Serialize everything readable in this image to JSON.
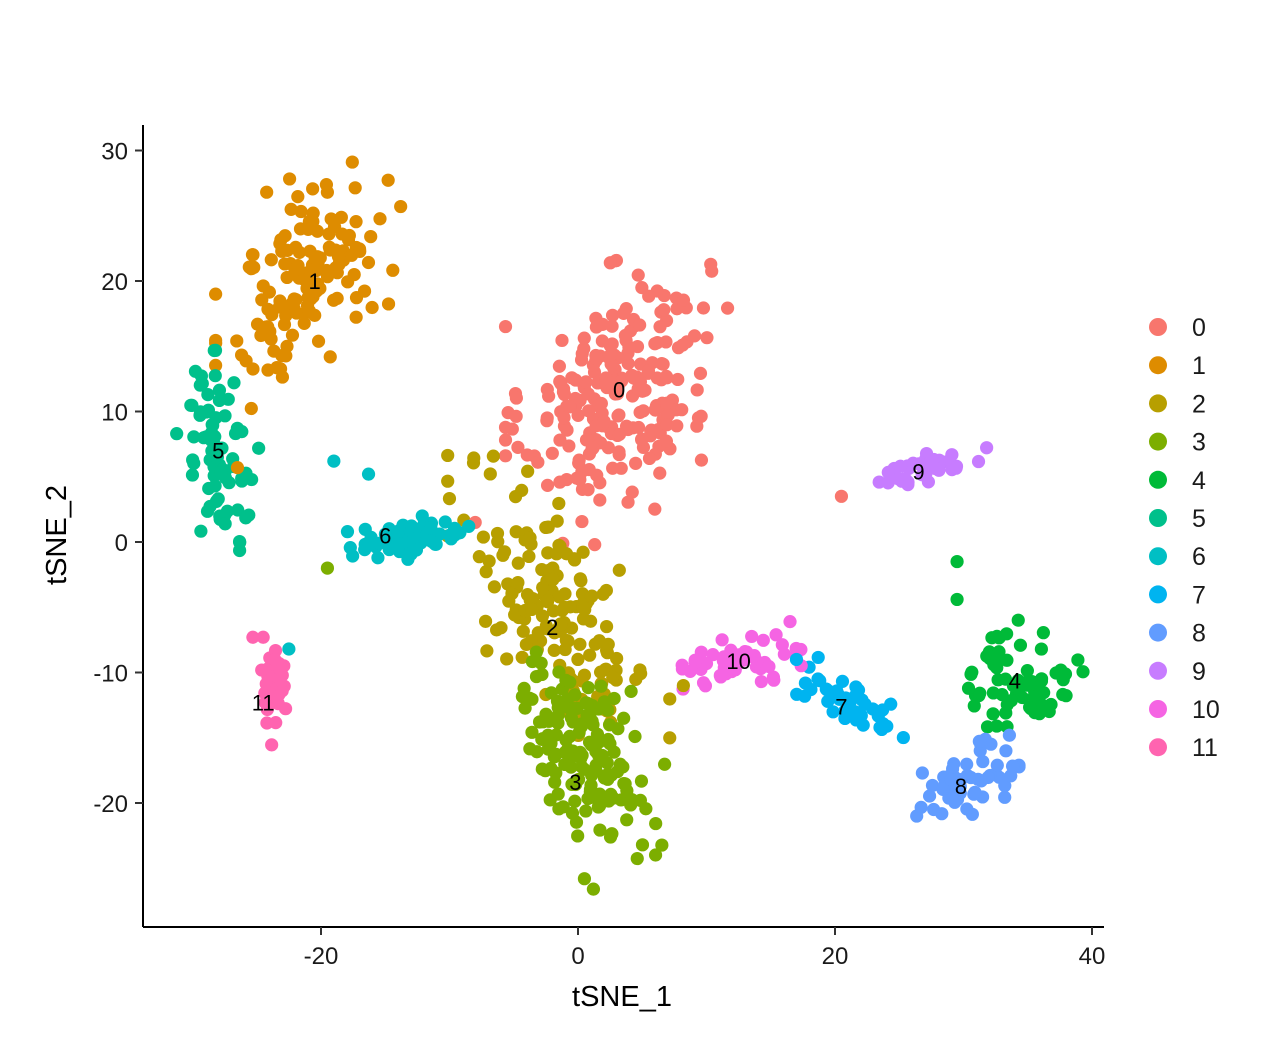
{
  "chart_data": {
    "type": "scatter",
    "title": "",
    "xlabel": "tSNE_1",
    "ylabel": "tSNE_2",
    "xlim": [
      -34,
      41
    ],
    "ylim": [
      -29.5,
      32
    ],
    "x_ticks": [
      -20,
      0,
      20,
      40
    ],
    "y_ticks": [
      30,
      20,
      10,
      0,
      -10,
      -20
    ],
    "x_tick_labels": [
      "-20",
      "0",
      "20",
      "40"
    ],
    "y_tick_labels": [
      "30",
      "20",
      "10",
      "0",
      "-10",
      "-20"
    ],
    "grid": false,
    "legend_position": "right",
    "legend": [
      {
        "label": "0",
        "color": "#F8766D"
      },
      {
        "label": "1",
        "color": "#DE8C00"
      },
      {
        "label": "2",
        "color": "#B79F00"
      },
      {
        "label": "3",
        "color": "#7CAE00"
      },
      {
        "label": "4",
        "color": "#00BA38"
      },
      {
        "label": "5",
        "color": "#00C08B"
      },
      {
        "label": "6",
        "color": "#00BFC4"
      },
      {
        "label": "7",
        "color": "#00B4F0"
      },
      {
        "label": "8",
        "color": "#619CFF"
      },
      {
        "label": "9",
        "color": "#C77CFF"
      },
      {
        "label": "10",
        "color": "#F564E3"
      },
      {
        "label": "11",
        "color": "#FF64B0"
      }
    ],
    "cluster_labels": [
      {
        "text": "0",
        "x": 3.2,
        "y": 11.7
      },
      {
        "text": "1",
        "x": -20.5,
        "y": 20.0
      },
      {
        "text": "2",
        "x": -2.0,
        "y": -6.5
      },
      {
        "text": "3",
        "x": -0.2,
        "y": -18.4
      },
      {
        "text": "4",
        "x": 34.0,
        "y": -10.6
      },
      {
        "text": "5",
        "x": -28.0,
        "y": 7.0
      },
      {
        "text": "6",
        "x": -15.0,
        "y": 0.5
      },
      {
        "text": "7",
        "x": 20.5,
        "y": -12.6
      },
      {
        "text": "8",
        "x": 29.8,
        "y": -18.7
      },
      {
        "text": "9",
        "x": 26.5,
        "y": 5.4
      },
      {
        "text": "10",
        "x": 12.5,
        "y": -9.1
      },
      {
        "text": "11",
        "x": -24.5,
        "y": -12.3
      }
    ],
    "clusters": [
      {
        "name": "0",
        "color": "#F8766D",
        "n": 240,
        "cx": 3.0,
        "cy": 11.5,
        "sx": 3.6,
        "sy": 4.4,
        "r": 0.3
      },
      {
        "name": "1",
        "color": "#DE8C00",
        "n": 150,
        "cx": -21.0,
        "cy": 20.5,
        "sx": 3.0,
        "sy": 3.8,
        "r": 0.45
      },
      {
        "name": "2",
        "color": "#B79F00",
        "n": 160,
        "cx": -1.5,
        "cy": -5.5,
        "sx": 3.6,
        "sy": 4.6,
        "r": -0.55
      },
      {
        "name": "3",
        "color": "#7CAE00",
        "n": 150,
        "cx": 0.5,
        "cy": -16.0,
        "sx": 2.6,
        "sy": 3.3,
        "r": -0.5
      },
      {
        "name": "4",
        "color": "#00BA38",
        "n": 70,
        "cx": 34.5,
        "cy": -10.5,
        "sx": 2.0,
        "sy": 2.0,
        "r": 0.0
      },
      {
        "name": "5",
        "color": "#00C08B",
        "n": 75,
        "cx": -28.0,
        "cy": 7.0,
        "sx": 1.4,
        "sy": 3.4,
        "r": -0.4
      },
      {
        "name": "6",
        "color": "#00BFC4",
        "n": 70,
        "cx": -13.0,
        "cy": 0.3,
        "sx": 2.4,
        "sy": 0.7,
        "r": 0.2
      },
      {
        "name": "7",
        "color": "#00B4F0",
        "n": 45,
        "cx": 21.0,
        "cy": -12.5,
        "sx": 1.8,
        "sy": 1.4,
        "r": -0.7
      },
      {
        "name": "8",
        "color": "#619CFF",
        "n": 60,
        "cx": 30.0,
        "cy": -18.5,
        "sx": 1.8,
        "sy": 1.4,
        "r": 0.6
      },
      {
        "name": "9",
        "color": "#C77CFF",
        "n": 40,
        "cx": 27.0,
        "cy": 5.5,
        "sx": 2.0,
        "sy": 0.8,
        "r": 0.6
      },
      {
        "name": "10",
        "color": "#F564E3",
        "n": 55,
        "cx": 13.0,
        "cy": -9.0,
        "sx": 2.2,
        "sy": 0.8,
        "r": 0.3
      },
      {
        "name": "11",
        "color": "#FF64B0",
        "n": 35,
        "cx": -23.8,
        "cy": -11.0,
        "sx": 0.5,
        "sy": 2.0,
        "r": 0.0
      }
    ],
    "extra_points": [
      {
        "x": -26.5,
        "y": 5.7,
        "cluster": "1"
      },
      {
        "x": -8.0,
        "y": 1.5,
        "cluster": "0"
      },
      {
        "x": 1.3,
        "y": -0.2,
        "cluster": "0"
      },
      {
        "x": 20.5,
        "y": 3.5,
        "cluster": "0"
      },
      {
        "x": 8.2,
        "y": -11.0,
        "cluster": "2"
      },
      {
        "x": -19.5,
        "y": -2.0,
        "cluster": "3"
      },
      {
        "x": 29.5,
        "y": -1.5,
        "cluster": "4"
      },
      {
        "x": 29.5,
        "y": -4.4,
        "cluster": "4"
      },
      {
        "x": -25.3,
        "y": -7.3,
        "cluster": "11"
      },
      {
        "x": -24.5,
        "y": -7.3,
        "cluster": "11"
      },
      {
        "x": 16.5,
        "y": -6.1,
        "cluster": "10"
      },
      {
        "x": 1.2,
        "y": -26.6,
        "cluster": "3"
      },
      {
        "x": 0.5,
        "y": -25.8,
        "cluster": "3"
      },
      {
        "x": -19.0,
        "y": 6.2,
        "cluster": "6"
      },
      {
        "x": -16.3,
        "y": 5.2,
        "cluster": "6"
      },
      {
        "x": -22.5,
        "y": -8.2,
        "cluster": "6"
      },
      {
        "x": -8.5,
        "y": 1.2,
        "cluster": "6"
      },
      {
        "x": 17.0,
        "y": -9.0,
        "cluster": "7"
      },
      {
        "x": 26.8,
        "y": -17.7,
        "cluster": "8"
      },
      {
        "x": 33.3,
        "y": -16.0,
        "cluster": "8"
      }
    ]
  }
}
